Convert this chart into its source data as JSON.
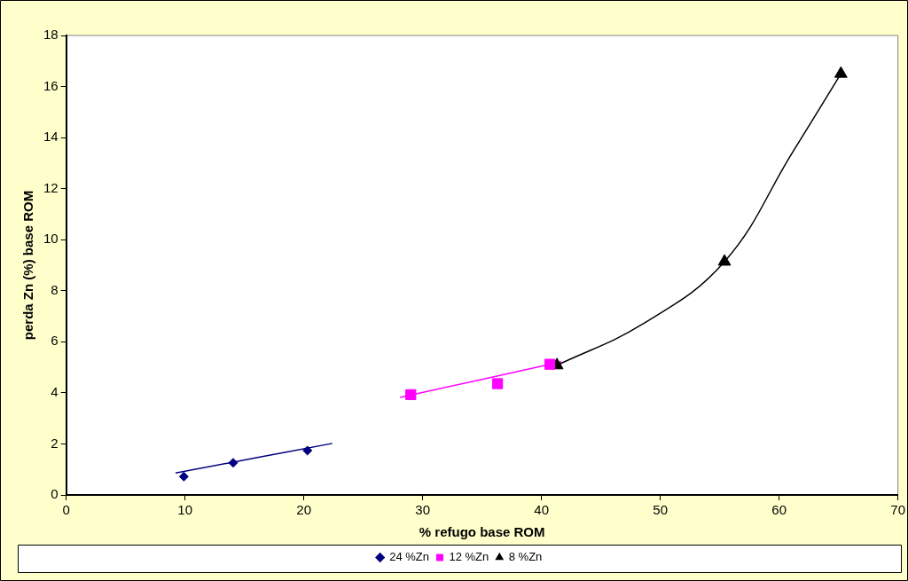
{
  "chart_data": {
    "type": "scatter",
    "xlabel": "% refugo base ROM",
    "ylabel": "perda Zn (%) base ROM",
    "xlim": [
      0,
      70
    ],
    "xticks": [
      0,
      10,
      20,
      30,
      40,
      50,
      60,
      70
    ],
    "ylim": [
      0,
      18
    ],
    "yticks": [
      0,
      2,
      4,
      6,
      8,
      10,
      12,
      14,
      16,
      18
    ],
    "grid": false,
    "legend": "bottom",
    "series": [
      {
        "name": "24 %Zn",
        "type": "scatter",
        "marker": "diamond",
        "color": "#000080",
        "x": [
          9.9,
          14.05,
          20.3
        ],
        "values": [
          0.72,
          1.26,
          1.74
        ]
      },
      {
        "name": "12 %Zn",
        "type": "scatter",
        "marker": "square",
        "color": "#ff00ff",
        "x": [
          29.0,
          36.3,
          40.7
        ],
        "values": [
          3.93,
          4.36,
          5.12
        ]
      },
      {
        "name": "8 %Zn",
        "type": "scatter",
        "marker": "triangle",
        "color": "#000000",
        "x": [
          41.3,
          55.4,
          65.2
        ],
        "values": [
          5.08,
          9.14,
          16.5
        ]
      },
      {
        "type": "line",
        "marker": "none",
        "color": "#000080",
        "x": [
          9.2,
          22.4
        ],
        "values": [
          0.86,
          2.02
        ]
      },
      {
        "type": "line",
        "marker": "none",
        "color": "#ff00ff",
        "x": [
          28.1,
          41.7
        ],
        "values": [
          3.82,
          5.22
        ]
      },
      {
        "type": "line",
        "marker": "none",
        "color": "#000000",
        "x": [
          41.3,
          48.5,
          55.4,
          61.1,
          65.2
        ],
        "values": [
          5.08,
          6.69,
          9.14,
          13.4,
          16.5
        ]
      }
    ]
  }
}
